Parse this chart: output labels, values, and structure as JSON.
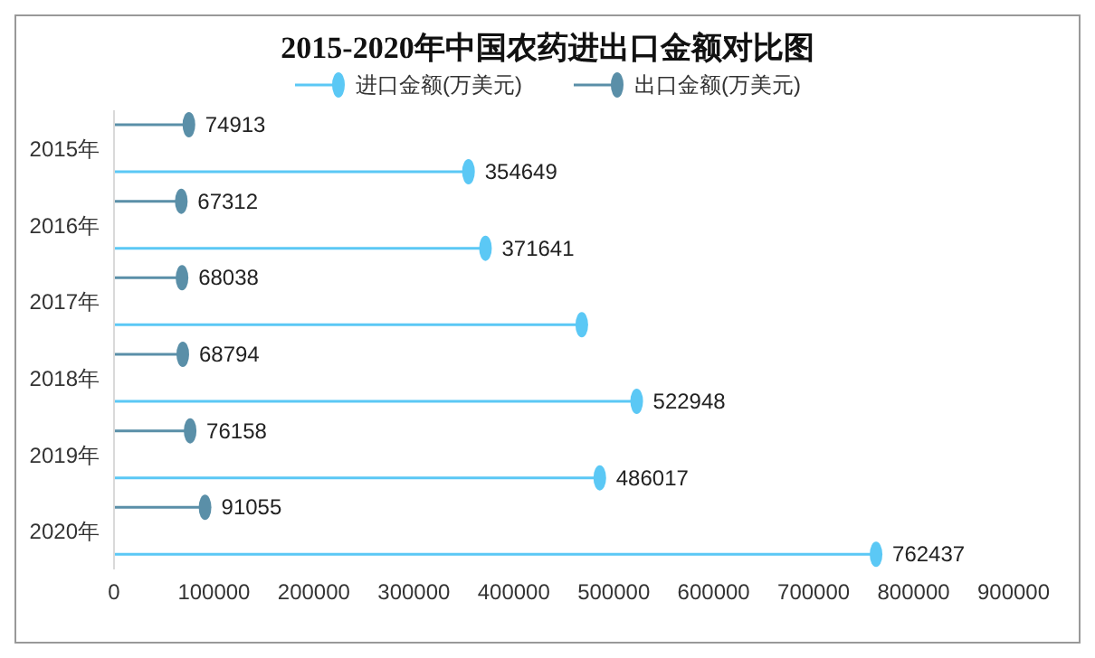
{
  "chart_data": {
    "type": "lollipop",
    "orientation": "horizontal",
    "title": "2015-2020年中国农药进出口金额对比图",
    "categories": [
      "2015年",
      "2016年",
      "2017年",
      "2018年",
      "2019年",
      "2020年"
    ],
    "series": [
      {
        "name": "进口金额(万美元)",
        "color": "#5bc8f5",
        "values": [
          354649,
          371641,
          468000,
          522948,
          486017,
          762437
        ],
        "value_labels": [
          "354649",
          "371641",
          null,
          "522948",
          "486017",
          "762437"
        ]
      },
      {
        "name": "出口金额(万美元)",
        "color": "#5a8fa8",
        "values": [
          74913,
          67312,
          68038,
          68794,
          76158,
          91055
        ],
        "value_labels": [
          "74913",
          "67312",
          "68038",
          "68794",
          "76158",
          "91055"
        ]
      }
    ],
    "xlim": [
      0,
      900000
    ],
    "xticks": [
      0,
      100000,
      200000,
      300000,
      400000,
      500000,
      600000,
      700000,
      800000,
      900000
    ],
    "grid": false,
    "legend": "top",
    "marker": "circle"
  }
}
